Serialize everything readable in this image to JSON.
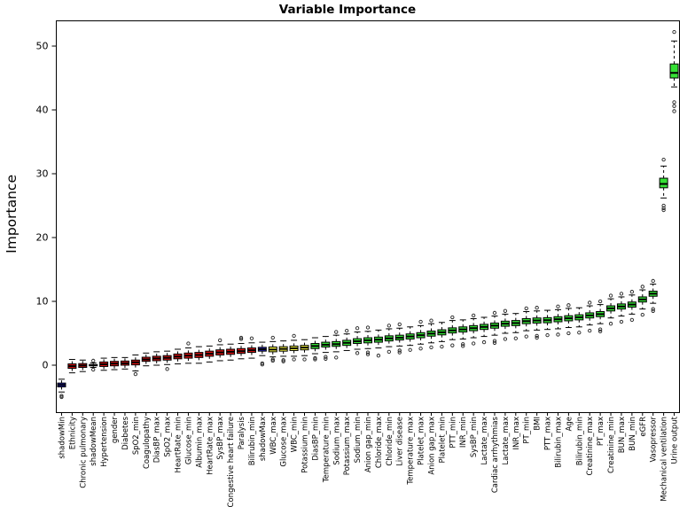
{
  "title": "Variable Importance",
  "ylabel": "Importance",
  "chart_data": {
    "type": "boxplot",
    "title": "Variable Importance",
    "xlabel": "",
    "ylabel": "Importance",
    "ylim": [
      -7.4,
      54
    ],
    "yticks": [
      0,
      10,
      20,
      30,
      40,
      50
    ],
    "grid": false,
    "legend_position": "none",
    "palette": {
      "shadow": "#2424cc",
      "rejected": "#de1212",
      "tentative": "#ffff42",
      "confirmed": "#35e035"
    },
    "box_border_color": "#000000",
    "median_color": "#000000",
    "items": [
      {
        "label": "shadowMin",
        "group": "shadow",
        "lo": -4.2,
        "q1": -3.4,
        "med": -3.1,
        "q3": -2.8,
        "hi": -2.2,
        "outliers": [
          -4.8,
          -5.0
        ]
      },
      {
        "label": "Ethnicity",
        "group": "rejected",
        "lo": -1.2,
        "q1": -0.5,
        "med": -0.15,
        "q3": 0.2,
        "hi": 0.9,
        "outliers": []
      },
      {
        "label": "Chronic pulmonary",
        "group": "rejected",
        "lo": -1.0,
        "q1": -0.35,
        "med": -0.05,
        "q3": 0.25,
        "hi": 0.8,
        "outliers": []
      },
      {
        "label": "shadowMean",
        "group": "shadow",
        "lo": -0.35,
        "q1": -0.1,
        "med": 0.0,
        "q3": 0.1,
        "hi": 0.35,
        "outliers": [
          0.7,
          -0.7
        ]
      },
      {
        "label": "Hypertension",
        "group": "rejected",
        "lo": -0.8,
        "q1": -0.2,
        "med": 0.15,
        "q3": 0.5,
        "hi": 1.1,
        "outliers": []
      },
      {
        "label": "gender",
        "group": "rejected",
        "lo": -0.7,
        "q1": -0.1,
        "med": 0.25,
        "q3": 0.6,
        "hi": 1.2,
        "outliers": []
      },
      {
        "label": "Diabetes",
        "group": "rejected",
        "lo": -0.6,
        "q1": 0.0,
        "med": 0.3,
        "q3": 0.65,
        "hi": 1.2,
        "outliers": []
      },
      {
        "label": "SpO2_min",
        "group": "rejected",
        "lo": -0.9,
        "q1": 0.05,
        "med": 0.45,
        "q3": 0.8,
        "hi": 1.6,
        "outliers": [
          -1.4
        ]
      },
      {
        "label": "Coagulopathy",
        "group": "rejected",
        "lo": -0.1,
        "q1": 0.6,
        "med": 0.9,
        "q3": 1.25,
        "hi": 1.9,
        "outliers": []
      },
      {
        "label": "DiasBP_max",
        "group": "rejected",
        "lo": 0.0,
        "q1": 0.7,
        "med": 1.05,
        "q3": 1.4,
        "hi": 2.1,
        "outliers": []
      },
      {
        "label": "SpO2_max",
        "group": "rejected",
        "lo": 0.1,
        "q1": 0.8,
        "med": 1.15,
        "q3": 1.5,
        "hi": 2.2,
        "outliers": [
          -0.6
        ]
      },
      {
        "label": "HeartRate_min",
        "group": "rejected",
        "lo": 0.2,
        "q1": 1.0,
        "med": 1.35,
        "q3": 1.75,
        "hi": 2.5,
        "outliers": []
      },
      {
        "label": "Glucose_min",
        "group": "rejected",
        "lo": 0.3,
        "q1": 1.1,
        "med": 1.5,
        "q3": 1.9,
        "hi": 2.7,
        "outliers": [
          3.4
        ]
      },
      {
        "label": "Albumin_max",
        "group": "rejected",
        "lo": 0.3,
        "q1": 1.2,
        "med": 1.6,
        "q3": 2.0,
        "hi": 2.9,
        "outliers": []
      },
      {
        "label": "HeartRate_max",
        "group": "rejected",
        "lo": 0.5,
        "q1": 1.4,
        "med": 1.8,
        "q3": 2.2,
        "hi": 3.0,
        "outliers": []
      },
      {
        "label": "SysBP_max",
        "group": "rejected",
        "lo": 0.7,
        "q1": 1.6,
        "med": 2.0,
        "q3": 2.4,
        "hi": 3.2,
        "outliers": [
          3.9
        ]
      },
      {
        "label": "Congestive heart failure",
        "group": "rejected",
        "lo": 0.8,
        "q1": 1.7,
        "med": 2.1,
        "q3": 2.5,
        "hi": 3.3,
        "outliers": []
      },
      {
        "label": "Paralysis",
        "group": "rejected",
        "lo": 1.0,
        "q1": 1.85,
        "med": 2.2,
        "q3": 2.6,
        "hi": 3.4,
        "outliers": [
          4.1,
          4.3
        ]
      },
      {
        "label": "Bilirubin_min",
        "group": "rejected",
        "lo": 1.1,
        "q1": 2.0,
        "med": 2.35,
        "q3": 2.7,
        "hi": 3.5,
        "outliers": [
          4.2
        ]
      },
      {
        "label": "shadowMax",
        "group": "shadow",
        "lo": 1.5,
        "q1": 2.2,
        "med": 2.5,
        "q3": 2.8,
        "hi": 3.6,
        "outliers": [
          0.3,
          0.1
        ]
      },
      {
        "label": "WBC_max",
        "group": "tentative",
        "lo": 1.3,
        "q1": 2.1,
        "med": 2.45,
        "q3": 2.85,
        "hi": 3.7,
        "outliers": [
          4.3,
          0.9,
          0.7
        ]
      },
      {
        "label": "Glucose_max",
        "group": "tentative",
        "lo": 1.4,
        "q1": 2.2,
        "med": 2.55,
        "q3": 2.9,
        "hi": 3.8,
        "outliers": [
          0.8,
          0.6
        ]
      },
      {
        "label": "WBC_min",
        "group": "tentative",
        "lo": 1.4,
        "q1": 2.3,
        "med": 2.65,
        "q3": 3.0,
        "hi": 3.9,
        "outliers": [
          4.6,
          0.9
        ]
      },
      {
        "label": "Potassium_min",
        "group": "tentative",
        "lo": 1.5,
        "q1": 2.4,
        "med": 2.75,
        "q3": 3.1,
        "hi": 4.0,
        "outliers": [
          0.9
        ]
      },
      {
        "label": "DiasBP_min",
        "group": "confirmed",
        "lo": 1.8,
        "q1": 2.6,
        "med": 3.0,
        "q3": 3.4,
        "hi": 4.3,
        "outliers": [
          1.1,
          0.9
        ]
      },
      {
        "label": "Temperature_min",
        "group": "confirmed",
        "lo": 2.0,
        "q1": 2.85,
        "med": 3.2,
        "q3": 3.6,
        "hi": 4.5,
        "outliers": [
          1.3,
          1.0
        ]
      },
      {
        "label": "Sodium_max",
        "group": "confirmed",
        "lo": 2.1,
        "q1": 2.95,
        "med": 3.3,
        "q3": 3.7,
        "hi": 4.7,
        "outliers": [
          5.2,
          1.2
        ]
      },
      {
        "label": "Potassium_max",
        "group": "confirmed",
        "lo": 2.3,
        "q1": 3.1,
        "med": 3.5,
        "q3": 3.9,
        "hi": 4.9,
        "outliers": [
          5.4
        ]
      },
      {
        "label": "Sodium_min",
        "group": "confirmed",
        "lo": 2.5,
        "q1": 3.4,
        "med": 3.75,
        "q3": 4.15,
        "hi": 5.2,
        "outliers": [
          5.8,
          1.9
        ]
      },
      {
        "label": "Anion gap_min",
        "group": "confirmed",
        "lo": 2.6,
        "q1": 3.5,
        "med": 3.9,
        "q3": 4.3,
        "hi": 5.3,
        "outliers": [
          5.9,
          2.0,
          1.7
        ]
      },
      {
        "label": "Chloride_max",
        "group": "confirmed",
        "lo": 2.7,
        "q1": 3.6,
        "med": 4.0,
        "q3": 4.4,
        "hi": 5.5,
        "outliers": [
          1.5
        ]
      },
      {
        "label": "Chloride_min",
        "group": "confirmed",
        "lo": 2.9,
        "q1": 3.8,
        "med": 4.2,
        "q3": 4.6,
        "hi": 5.7,
        "outliers": [
          6.2,
          2.1
        ]
      },
      {
        "label": "Liver disease",
        "group": "confirmed",
        "lo": 3.0,
        "q1": 3.95,
        "med": 4.3,
        "q3": 4.7,
        "hi": 5.8,
        "outliers": [
          6.4,
          2.3,
          2.0
        ]
      },
      {
        "label": "Temperature_max",
        "group": "confirmed",
        "lo": 3.1,
        "q1": 4.1,
        "med": 4.5,
        "q3": 4.9,
        "hi": 6.0,
        "outliers": [
          2.4
        ]
      },
      {
        "label": "Platelet_max",
        "group": "confirmed",
        "lo": 3.3,
        "q1": 4.3,
        "med": 4.7,
        "q3": 5.1,
        "hi": 6.2,
        "outliers": [
          6.8,
          2.6
        ]
      },
      {
        "label": "Anion gap_max",
        "group": "confirmed",
        "lo": 3.5,
        "q1": 4.55,
        "med": 4.95,
        "q3": 5.35,
        "hi": 6.5,
        "outliers": [
          7.0,
          2.8
        ]
      },
      {
        "label": "Platelet_min",
        "group": "confirmed",
        "lo": 3.7,
        "q1": 4.75,
        "med": 5.15,
        "q3": 5.55,
        "hi": 6.7,
        "outliers": [
          2.9
        ]
      },
      {
        "label": "PTT_min",
        "group": "confirmed",
        "lo": 4.0,
        "q1": 5.05,
        "med": 5.45,
        "q3": 5.85,
        "hi": 7.0,
        "outliers": [
          7.5,
          3.1
        ]
      },
      {
        "label": "INR_min",
        "group": "confirmed",
        "lo": 4.1,
        "q1": 5.2,
        "med": 5.6,
        "q3": 6.0,
        "hi": 7.1,
        "outliers": [
          3.3,
          3.0
        ]
      },
      {
        "label": "SysBP_min",
        "group": "confirmed",
        "lo": 4.3,
        "q1": 5.4,
        "med": 5.8,
        "q3": 6.2,
        "hi": 7.3,
        "outliers": [
          7.8,
          3.4
        ]
      },
      {
        "label": "Lactate_max",
        "group": "confirmed",
        "lo": 4.5,
        "q1": 5.6,
        "med": 6.0,
        "q3": 6.4,
        "hi": 7.5,
        "outliers": [
          3.6
        ]
      },
      {
        "label": "Cardiac arrhythmias",
        "group": "confirmed",
        "lo": 4.7,
        "q1": 5.8,
        "med": 6.2,
        "q3": 6.6,
        "hi": 7.7,
        "outliers": [
          8.2,
          3.8,
          3.5
        ]
      },
      {
        "label": "Lactate_max",
        "group": "confirmed",
        "lo": 5.0,
        "q1": 6.1,
        "med": 6.5,
        "q3": 6.9,
        "hi": 8.0,
        "outliers": [
          8.5,
          4.1
        ]
      },
      {
        "label": "INR_max",
        "group": "confirmed",
        "lo": 5.1,
        "q1": 6.2,
        "med": 6.6,
        "q3": 7.0,
        "hi": 8.1,
        "outliers": [
          4.2
        ]
      },
      {
        "label": "PT_min",
        "group": "confirmed",
        "lo": 5.4,
        "q1": 6.5,
        "med": 6.9,
        "q3": 7.3,
        "hi": 8.4,
        "outliers": [
          8.9,
          4.5
        ]
      },
      {
        "label": "BMI",
        "group": "confirmed",
        "lo": 5.5,
        "q1": 6.6,
        "med": 7.0,
        "q3": 7.4,
        "hi": 8.5,
        "outliers": [
          9.0,
          4.6,
          4.3
        ]
      },
      {
        "label": "PTT_max",
        "group": "confirmed",
        "lo": 5.6,
        "q1": 6.65,
        "med": 7.05,
        "q3": 7.45,
        "hi": 8.6,
        "outliers": [
          4.7
        ]
      },
      {
        "label": "Bilirubin_max",
        "group": "confirmed",
        "lo": 5.7,
        "q1": 6.8,
        "med": 7.2,
        "q3": 7.6,
        "hi": 8.7,
        "outliers": [
          9.2,
          4.8
        ]
      },
      {
        "label": "Age",
        "group": "confirmed",
        "lo": 5.9,
        "q1": 6.95,
        "med": 7.35,
        "q3": 7.75,
        "hi": 8.9,
        "outliers": [
          9.4,
          5.0
        ]
      },
      {
        "label": "Bilirubin_min",
        "group": "confirmed",
        "lo": 6.0,
        "q1": 7.1,
        "med": 7.5,
        "q3": 7.9,
        "hi": 9.0,
        "outliers": [
          5.1
        ]
      },
      {
        "label": "Creatinine_max",
        "group": "confirmed",
        "lo": 6.3,
        "q1": 7.4,
        "med": 7.8,
        "q3": 8.2,
        "hi": 9.3,
        "outliers": [
          9.8,
          5.4
        ]
      },
      {
        "label": "PT_max",
        "group": "confirmed",
        "lo": 6.5,
        "q1": 7.6,
        "med": 8.0,
        "q3": 8.4,
        "hi": 9.5,
        "outliers": [
          10.0,
          5.6,
          5.3
        ]
      },
      {
        "label": "Creatinine_min",
        "group": "confirmed",
        "lo": 7.4,
        "q1": 8.5,
        "med": 8.9,
        "q3": 9.3,
        "hi": 10.4,
        "outliers": [
          10.9,
          6.5
        ]
      },
      {
        "label": "BUN_max",
        "group": "confirmed",
        "lo": 7.7,
        "q1": 8.8,
        "med": 9.2,
        "q3": 9.6,
        "hi": 10.7,
        "outliers": [
          11.2,
          6.8
        ]
      },
      {
        "label": "BUN_min",
        "group": "confirmed",
        "lo": 8.0,
        "q1": 9.1,
        "med": 9.5,
        "q3": 9.9,
        "hi": 11.0,
        "outliers": [
          11.5,
          7.1
        ]
      },
      {
        "label": "eGFR",
        "group": "confirmed",
        "lo": 8.8,
        "q1": 9.9,
        "med": 10.3,
        "q3": 10.7,
        "hi": 11.8,
        "outliers": [
          12.3,
          7.9
        ]
      },
      {
        "label": "Vasopressor",
        "group": "confirmed",
        "lo": 9.7,
        "q1": 10.8,
        "med": 11.2,
        "q3": 11.6,
        "hi": 12.7,
        "outliers": [
          13.2,
          8.8,
          8.5
        ]
      },
      {
        "label": "Mechanical ventilation",
        "group": "confirmed",
        "lo": 26.2,
        "q1": 27.8,
        "med": 28.4,
        "q3": 29.3,
        "hi": 31.2,
        "outliers": [
          24.3,
          24.6,
          25.0,
          32.2
        ]
      },
      {
        "label": "Urine output",
        "group": "confirmed",
        "lo": 43.6,
        "q1": 45.0,
        "med": 45.8,
        "q3": 47.2,
        "hi": 50.8,
        "outliers": [
          39.8,
          40.6,
          41.2,
          52.2
        ]
      }
    ]
  }
}
